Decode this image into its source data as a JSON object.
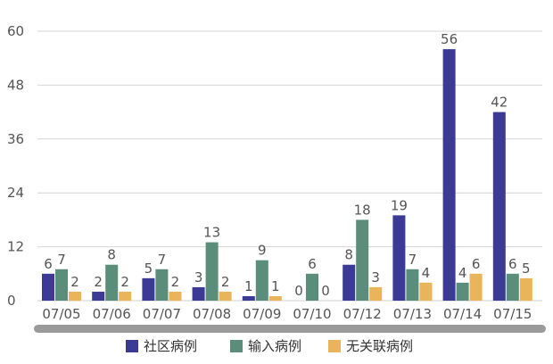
{
  "chart_data": {
    "type": "bar",
    "title": "",
    "xlabel": "",
    "ylabel": "",
    "ylim": [
      0,
      60
    ],
    "yticks": [
      0,
      12,
      24,
      36,
      48,
      60
    ],
    "grid": true,
    "legend_position": "bottom",
    "categories": [
      "07/05",
      "07/06",
      "07/07",
      "07/08",
      "07/09",
      "07/10",
      "07/12",
      "07/13",
      "07/14",
      "07/15"
    ],
    "series": [
      {
        "name": "社区病例",
        "color": "#3b3b96",
        "values": [
          6,
          2,
          5,
          3,
          1,
          0,
          8,
          19,
          56,
          42
        ]
      },
      {
        "name": "输入病例",
        "color": "#5a8e7a",
        "values": [
          7,
          8,
          7,
          13,
          9,
          6,
          18,
          7,
          4,
          6
        ]
      },
      {
        "name": "无关联病例",
        "color": "#eab45a",
        "values": [
          2,
          2,
          2,
          2,
          1,
          0,
          3,
          4,
          6,
          5
        ]
      }
    ],
    "scrollbar_color": "#9a9a9a"
  }
}
